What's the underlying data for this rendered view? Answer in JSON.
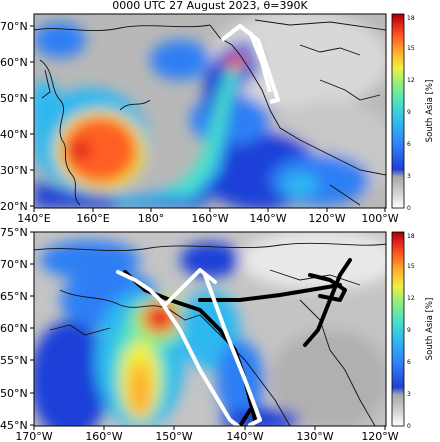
{
  "title": "0000 UTC 27 August 2023,   θ=390K",
  "colors": {
    "land_outline": "#111111",
    "trajectory_white": "#ffffff",
    "trajectory_black": "#000000",
    "colorbar": [
      "#ffffff",
      "#d0d0d0",
      "#a8a8a8",
      "#1f3fd8",
      "#2f7ff5",
      "#2fb8f0",
      "#48e0c8",
      "#8ff07a",
      "#f0f040",
      "#ffb030",
      "#ff6020",
      "#e02020",
      "#a00000"
    ]
  },
  "colorbar": {
    "label": "South Asia [%]",
    "ticks": [
      "0",
      "3",
      "6",
      "9",
      "12",
      "15",
      "18"
    ]
  },
  "panels": [
    {
      "id": "top",
      "x_ticks": [
        "140°E",
        "160°E",
        "180°",
        "160°W",
        "140°W",
        "120°W",
        "100°W"
      ],
      "y_ticks": [
        "70°N",
        "60°N",
        "50°N",
        "40°N",
        "30°N",
        "20°N"
      ]
    },
    {
      "id": "bottom",
      "x_ticks": [
        "170°W",
        "160°W",
        "150°W",
        "140°W",
        "130°W",
        "120°W"
      ],
      "y_ticks": [
        "75°N",
        "70°N",
        "65°N",
        "60°N",
        "55°N",
        "50°N",
        "45°N"
      ]
    }
  ]
}
